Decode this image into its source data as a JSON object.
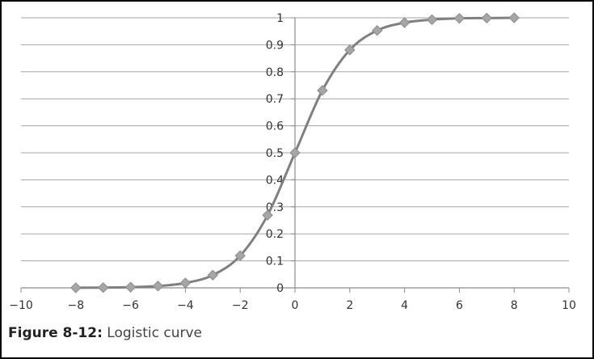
{
  "caption": {
    "label": "Figure 8-12:",
    "text": "Logistic curve"
  },
  "chart_data": {
    "type": "line",
    "title": "",
    "xlabel": "",
    "ylabel": "",
    "xlim": [
      -10,
      10
    ],
    "ylim": [
      0,
      1
    ],
    "x_ticks": [
      -10,
      -8,
      -6,
      -4,
      -2,
      0,
      2,
      4,
      6,
      8,
      10
    ],
    "x_tick_labels": [
      "−10",
      "−8",
      "−6",
      "−4",
      "−2",
      "0",
      "2",
      "4",
      "6",
      "8",
      "10"
    ],
    "y_ticks": [
      0,
      0.1,
      0.2,
      0.3,
      0.4,
      0.5,
      0.6,
      0.7,
      0.8,
      0.9,
      1
    ],
    "y_tick_labels": [
      "0",
      "0.1",
      "0.2",
      "0.3",
      "0.4",
      "0.5",
      "0.6",
      "0.7",
      "0.8",
      "0.9",
      "1"
    ],
    "grid": "horizontal",
    "legend": "none",
    "series": [
      {
        "marker": "diamond",
        "color": "#808080",
        "marker_color": "#a6a6a6",
        "x": [
          -8,
          -7,
          -6,
          -5,
          -4,
          -3,
          -2,
          -1,
          0,
          1,
          2,
          3,
          4,
          5,
          6,
          7,
          8
        ],
        "y": [
          0.0003,
          0.0009,
          0.0025,
          0.0067,
          0.018,
          0.047,
          0.119,
          0.269,
          0.5,
          0.731,
          0.881,
          0.953,
          0.982,
          0.993,
          0.998,
          0.999,
          1.0
        ]
      }
    ]
  }
}
